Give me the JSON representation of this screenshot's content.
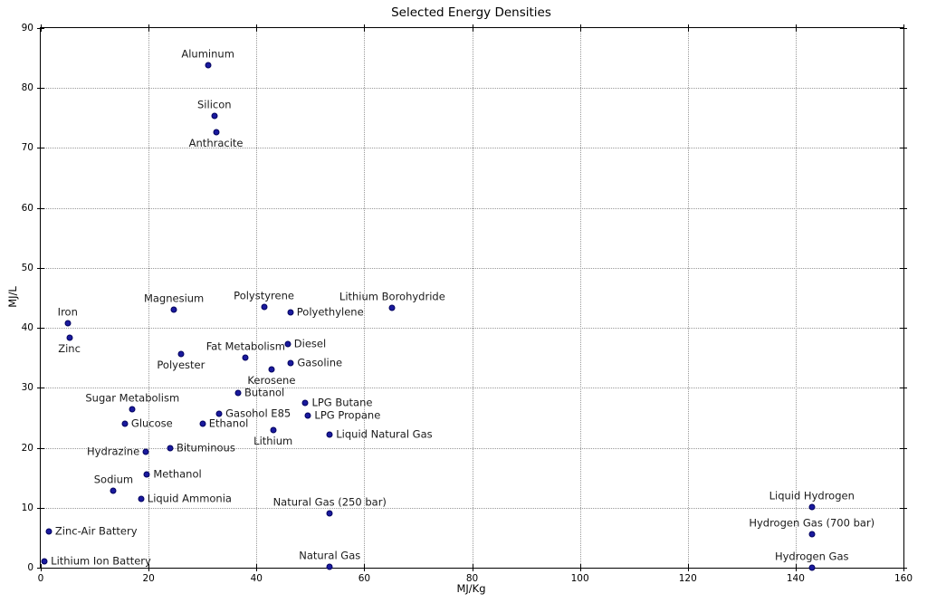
{
  "chart_data": {
    "type": "scatter",
    "title": "Selected Energy Densities",
    "xlabel": "MJ/Kg",
    "ylabel": "MJ/L",
    "xlim": [
      0,
      160
    ],
    "ylim": [
      0,
      90
    ],
    "xticks": [
      0,
      20,
      40,
      60,
      80,
      100,
      120,
      140,
      160
    ],
    "yticks": [
      0,
      10,
      20,
      30,
      40,
      50,
      60,
      70,
      80,
      90
    ],
    "grid": true,
    "grid_style": "dotted",
    "legend": "none",
    "marker_color": "#1a1a9e",
    "points": [
      {
        "label": "Aluminum",
        "x": 31.0,
        "y": 83.8,
        "label_pos": "above"
      },
      {
        "label": "Silicon",
        "x": 32.2,
        "y": 75.3,
        "label_pos": "above"
      },
      {
        "label": "Anthracite",
        "x": 32.5,
        "y": 72.6,
        "label_pos": "below"
      },
      {
        "label": "Iron",
        "x": 5.0,
        "y": 40.7,
        "label_pos": "above"
      },
      {
        "label": "Zinc",
        "x": 5.3,
        "y": 38.4,
        "label_pos": "below"
      },
      {
        "label": "Magnesium",
        "x": 24.7,
        "y": 43.0,
        "label_pos": "above"
      },
      {
        "label": "Polystyrene",
        "x": 41.4,
        "y": 43.5,
        "label_pos": "above"
      },
      {
        "label": "Polyethylene",
        "x": 46.3,
        "y": 42.6,
        "label_pos": "right"
      },
      {
        "label": "Lithium Borohydride",
        "x": 65.2,
        "y": 43.4,
        "label_pos": "above"
      },
      {
        "label": "Fat Metabolism",
        "x": 38.0,
        "y": 35.0,
        "label_pos": "above"
      },
      {
        "label": "Diesel",
        "x": 45.8,
        "y": 37.3,
        "label_pos": "right"
      },
      {
        "label": "Polyester",
        "x": 26.0,
        "y": 35.6,
        "label_pos": "below"
      },
      {
        "label": "Gasoline",
        "x": 46.4,
        "y": 34.2,
        "label_pos": "right"
      },
      {
        "label": "Kerosene",
        "x": 42.8,
        "y": 33.0,
        "label_pos": "below"
      },
      {
        "label": "Butanol",
        "x": 36.6,
        "y": 29.2,
        "label_pos": "right"
      },
      {
        "label": "Sugar Metabolism",
        "x": 17.0,
        "y": 26.4,
        "label_pos": "above"
      },
      {
        "label": "Glucose",
        "x": 15.6,
        "y": 24.0,
        "label_pos": "right"
      },
      {
        "label": "Gasohol E85",
        "x": 33.1,
        "y": 25.6,
        "label_pos": "right"
      },
      {
        "label": "Ethanol",
        "x": 30.0,
        "y": 24.0,
        "label_pos": "right"
      },
      {
        "label": "LPG Butane",
        "x": 49.1,
        "y": 27.5,
        "label_pos": "right"
      },
      {
        "label": "LPG Propane",
        "x": 49.6,
        "y": 25.3,
        "label_pos": "right"
      },
      {
        "label": "Lithium",
        "x": 43.1,
        "y": 23.0,
        "label_pos": "below"
      },
      {
        "label": "Liquid Natural Gas",
        "x": 53.6,
        "y": 22.2,
        "label_pos": "right"
      },
      {
        "label": "Hydrazine",
        "x": 19.5,
        "y": 19.3,
        "label_pos": "left"
      },
      {
        "label": "Bituminous",
        "x": 24.0,
        "y": 20.0,
        "label_pos": "right"
      },
      {
        "label": "Methanol",
        "x": 19.7,
        "y": 15.6,
        "label_pos": "right"
      },
      {
        "label": "Sodium",
        "x": 13.5,
        "y": 12.8,
        "label_pos": "above"
      },
      {
        "label": "Liquid Ammonia",
        "x": 18.6,
        "y": 11.5,
        "label_pos": "right"
      },
      {
        "label": "Natural Gas (250 bar)",
        "x": 53.6,
        "y": 9.0,
        "label_pos": "above"
      },
      {
        "label": "Natural Gas",
        "x": 53.6,
        "y": 0.1,
        "label_pos": "above"
      },
      {
        "label": "Zinc-Air Battery",
        "x": 1.5,
        "y": 6.0,
        "label_pos": "right"
      },
      {
        "label": "Lithium Ion Battery",
        "x": 0.7,
        "y": 1.0,
        "label_pos": "right"
      },
      {
        "label": "Liquid Hydrogen",
        "x": 143.0,
        "y": 10.1,
        "label_pos": "above"
      },
      {
        "label": "Hydrogen Gas (700 bar)",
        "x": 143.0,
        "y": 5.6,
        "label_pos": "above"
      },
      {
        "label": "Hydrogen Gas",
        "x": 143.0,
        "y": 0.05,
        "label_pos": "above"
      }
    ]
  }
}
